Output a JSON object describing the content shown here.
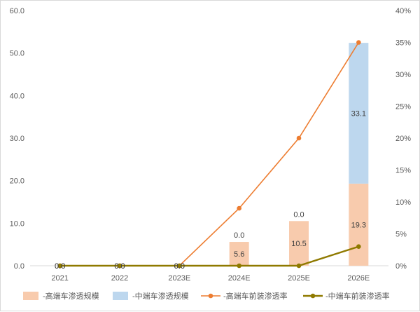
{
  "chart_data": {
    "type": "bar",
    "categories": [
      "2021",
      "2022",
      "2023E",
      "2024E",
      "2025E",
      "2026E"
    ],
    "series": [
      {
        "name": "-高端车渗透规模",
        "kind": "stacked-bar",
        "axis": "left",
        "color": "#f8cbad",
        "values": [
          0.0,
          0.0,
          0.0,
          5.6,
          10.5,
          19.3
        ],
        "labels": [
          "0.0",
          "0.0",
          "0.0",
          "5.6",
          "10.5",
          "19.3"
        ]
      },
      {
        "name": "-中端车渗透规模",
        "kind": "stacked-bar",
        "axis": "left",
        "color": "#bdd7ee",
        "values": [
          0.0,
          0.0,
          0.0,
          0.0,
          0.0,
          33.1
        ],
        "labels": [
          "0.0",
          "0.0",
          "0.0",
          "0.0",
          "0.0",
          "33.1"
        ]
      },
      {
        "name": "-高端车前装渗透率",
        "kind": "line",
        "axis": "right",
        "color": "#ed7d31",
        "values": [
          0,
          0,
          0,
          0.09,
          0.2,
          0.35
        ]
      },
      {
        "name": "-中端车前装渗透率",
        "kind": "line",
        "axis": "right",
        "color": "#8f7a00",
        "values": [
          0,
          0,
          0,
          0,
          0,
          0.03
        ]
      }
    ],
    "y_left": {
      "min": 0,
      "max": 60,
      "ticks": [
        "0.0",
        "10.0",
        "20.0",
        "30.0",
        "40.0",
        "50.0",
        "60.0"
      ]
    },
    "y_right": {
      "min": 0,
      "max": 0.4,
      "ticks": [
        "0%",
        "5%",
        "10%",
        "15%",
        "20%",
        "25%",
        "30%",
        "35%",
        "40%"
      ]
    },
    "title": "",
    "xlabel": "",
    "ylabel": "",
    "grid": false,
    "legend_position": "bottom"
  }
}
